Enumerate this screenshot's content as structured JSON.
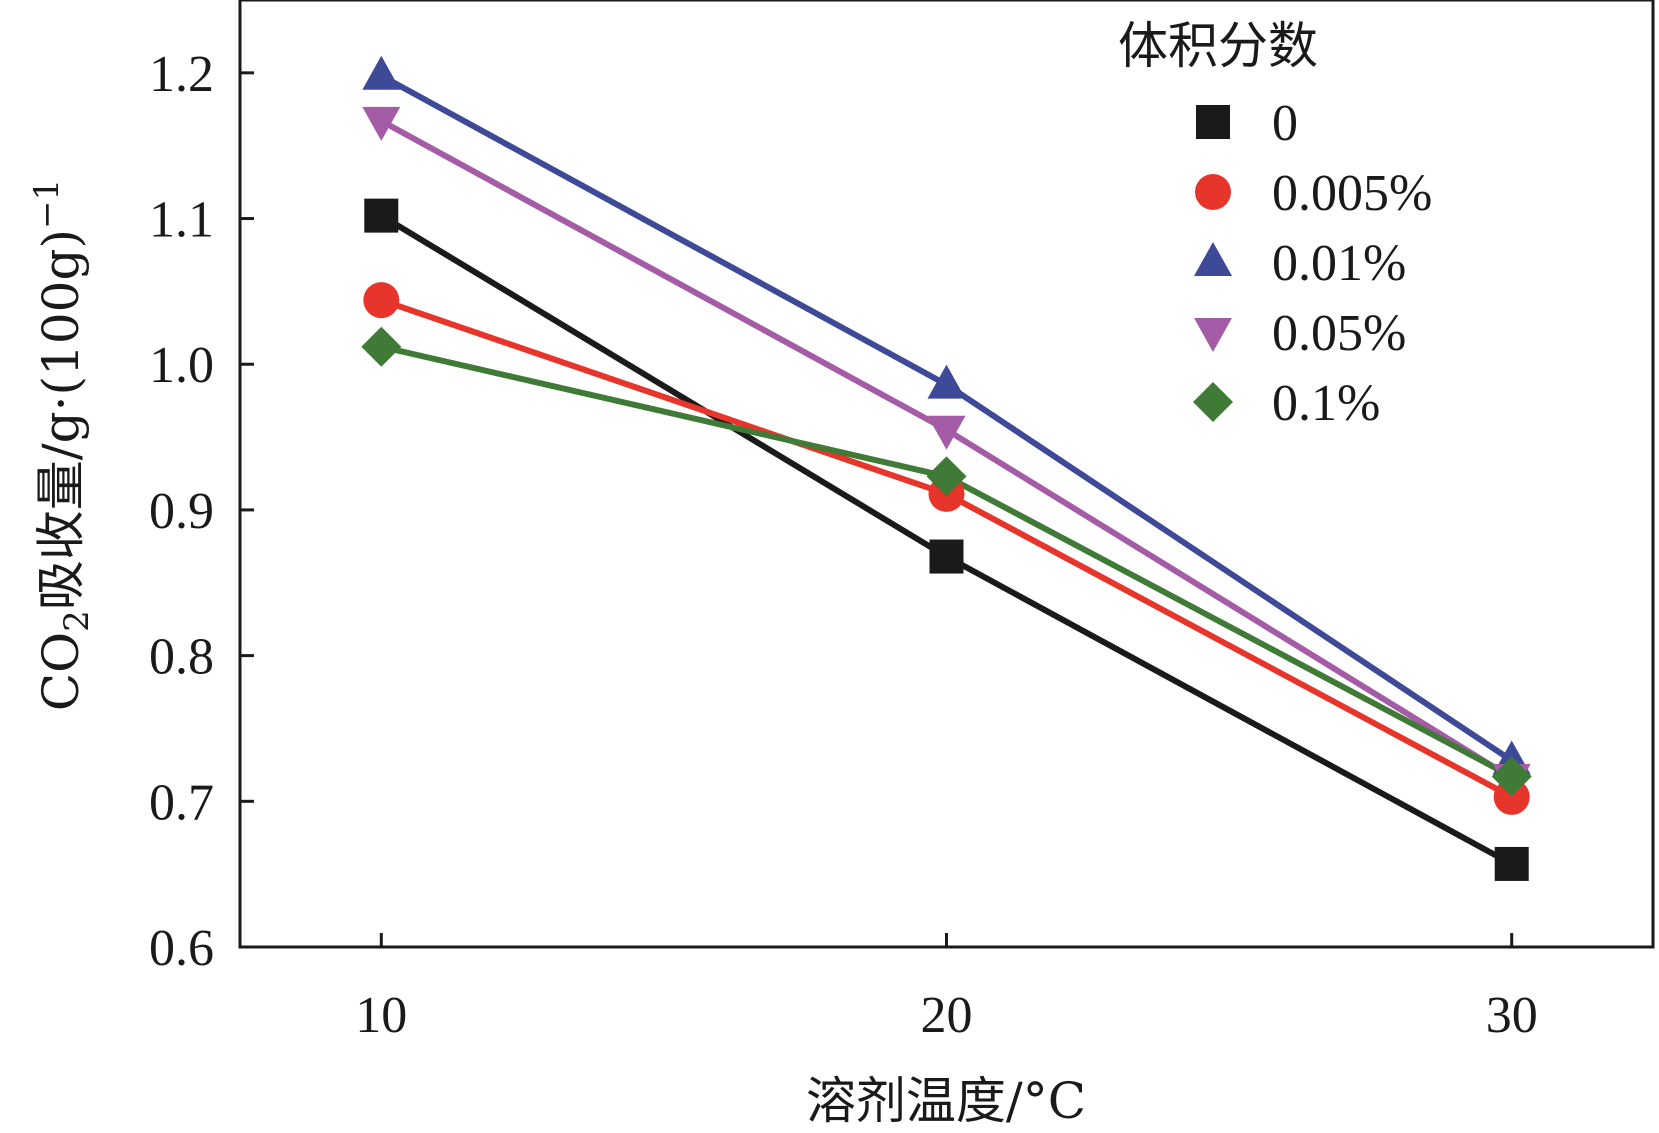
{
  "chart_data": {
    "type": "line",
    "x": [
      10,
      20,
      30
    ],
    "xlim": [
      7.5,
      32.5
    ],
    "ylim": [
      0.6,
      1.25
    ],
    "xticks": [
      10,
      20,
      30
    ],
    "yticks": [
      0.6,
      0.7,
      0.8,
      0.9,
      1.0,
      1.1,
      1.2
    ],
    "ytick_labels": [
      "0.6",
      "0.7",
      "0.8",
      "0.9",
      "1.0",
      "1.1",
      "1.2"
    ],
    "xlabel": "溶剂温度/°C",
    "ylabel": {
      "prefix": "CO",
      "subscript": "2",
      "main": "吸收量/g·(100g)",
      "superscript": "−1"
    },
    "grid": false,
    "legend": {
      "title": "体积分数",
      "position": "top-right"
    },
    "series": [
      {
        "name": "0",
        "values": [
          1.102,
          0.868,
          0.657
        ],
        "color": "#1a1a1a",
        "marker": "square"
      },
      {
        "name": "0.005%",
        "values": [
          1.044,
          0.911,
          0.703
        ],
        "color": "#e8352b",
        "marker": "circle"
      },
      {
        "name": "0.01%",
        "values": [
          1.198,
          0.986,
          0.728
        ],
        "color": "#3e4a97",
        "marker": "triangle-up"
      },
      {
        "name": "0.05%",
        "values": [
          1.167,
          0.955,
          0.716
        ],
        "color": "#a45ca6",
        "marker": "triangle-down"
      },
      {
        "name": "0.1%",
        "values": [
          1.012,
          0.923,
          0.717
        ],
        "color": "#3f7a36",
        "marker": "diamond"
      }
    ]
  }
}
